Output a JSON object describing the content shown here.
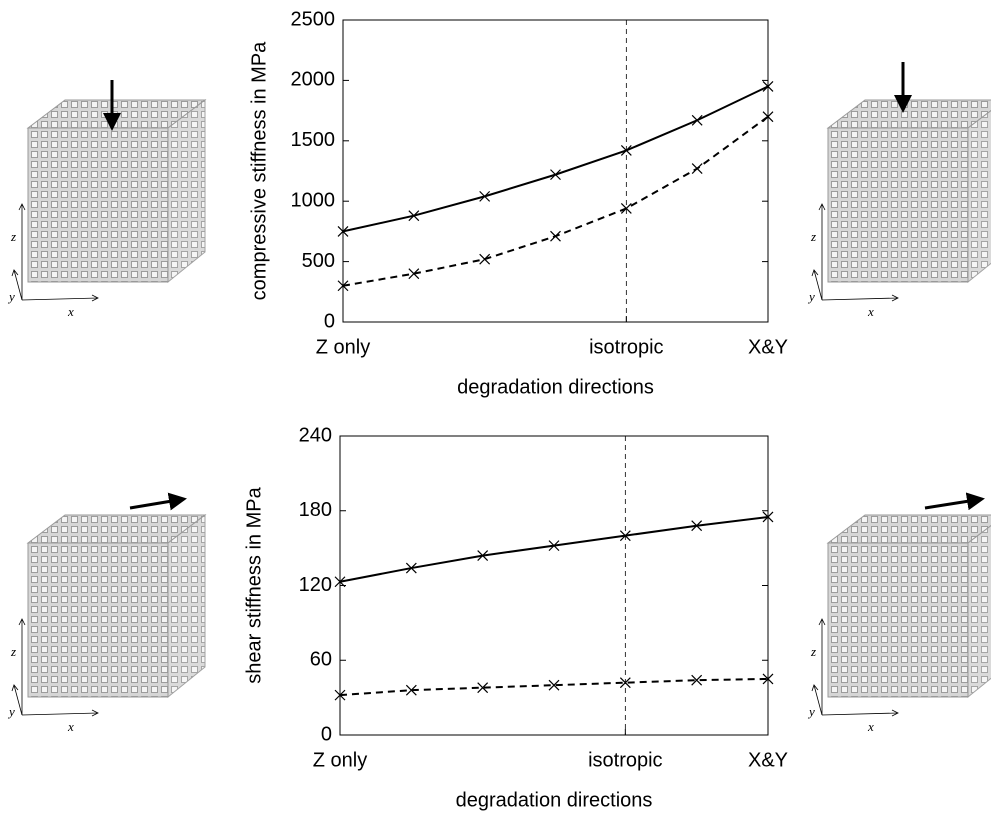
{
  "chart_data": [
    {
      "type": "line",
      "x_label": "degradation directions",
      "y_label": "compressive stiffness in MPa",
      "x": [
        0,
        1,
        2,
        3,
        4,
        5,
        6
      ],
      "xlim": [
        0,
        6
      ],
      "xticks": [
        {
          "value": 0,
          "label": "Z only"
        },
        {
          "value": 4,
          "label": "isotropic"
        },
        {
          "value": 6,
          "label": "X&Y"
        }
      ],
      "ylim": [
        0,
        2500
      ],
      "yticks": [
        0,
        500,
        1000,
        1500,
        2000,
        2500
      ],
      "vline": 4,
      "series": [
        {
          "color": "#000000",
          "dashed": false,
          "values": [
            750,
            880,
            1040,
            1220,
            1420,
            1670,
            1950
          ]
        },
        {
          "color": "#000000",
          "dashed": true,
          "values": [
            300,
            400,
            520,
            710,
            940,
            1270,
            1700
          ]
        }
      ]
    },
    {
      "type": "line",
      "x_label": "degradation directions",
      "y_label": "shear stiffness in MPa",
      "x": [
        0,
        1,
        2,
        3,
        4,
        5,
        6
      ],
      "xlim": [
        0,
        6
      ],
      "xticks": [
        {
          "value": 0,
          "label": "Z only"
        },
        {
          "value": 4,
          "label": "isotropic"
        },
        {
          "value": 6,
          "label": "X&Y"
        }
      ],
      "ylim": [
        0,
        240
      ],
      "yticks": [
        0,
        60,
        120,
        180,
        240
      ],
      "vline": 4,
      "series": [
        {
          "color": "#000000",
          "dashed": false,
          "values": [
            123,
            134,
            144,
            152,
            160,
            168,
            175
          ]
        },
        {
          "color": "#000000",
          "dashed": true,
          "values": [
            32,
            36,
            38,
            40,
            42,
            44,
            45
          ]
        }
      ]
    }
  ],
  "insets": [
    {
      "x": "x",
      "y": "y",
      "z": "z"
    },
    {
      "x": "x",
      "y": "y",
      "z": "z"
    },
    {
      "x": "x",
      "y": "y",
      "z": "z"
    },
    {
      "x": "x",
      "y": "y",
      "z": "z"
    }
  ]
}
